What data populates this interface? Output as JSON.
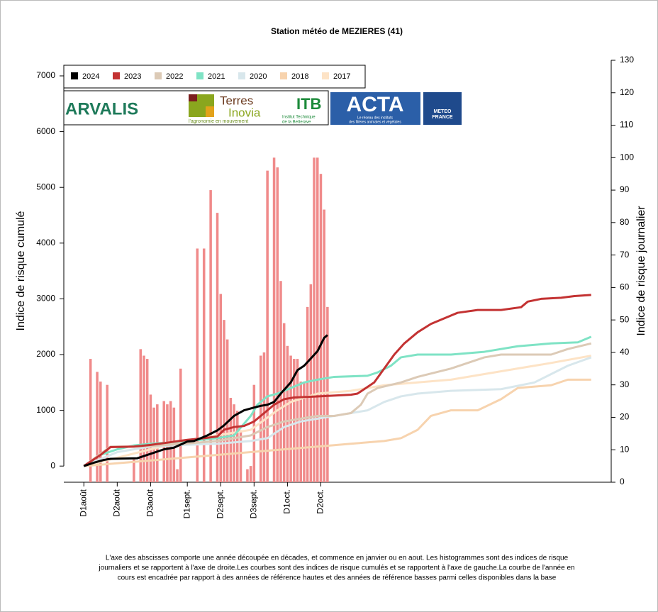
{
  "chart_data": {
    "type": "combo",
    "title": "Station météo de MEZIERES (41)",
    "y_label": "Indice de risque cumulé",
    "y2_label": "Indice de risque journalier",
    "xlim": [
      -6,
      158
    ],
    "xticks": [
      {
        "value": 0,
        "label": "D1août"
      },
      {
        "value": 10,
        "label": "D2août"
      },
      {
        "value": 20,
        "label": "D3août"
      },
      {
        "value": 31,
        "label": "D1sept."
      },
      {
        "value": 41,
        "label": "D2sept."
      },
      {
        "value": 51,
        "label": "D3sept."
      },
      {
        "value": 61,
        "label": "D1oct."
      },
      {
        "value": 71,
        "label": "D2oct."
      }
    ],
    "ylim": [
      -290,
      7280
    ],
    "yticks": [
      0,
      1000,
      2000,
      3000,
      4000,
      5000,
      6000,
      7000
    ],
    "y2lim": [
      0,
      130
    ],
    "y2ticks": [
      0,
      10,
      20,
      30,
      40,
      50,
      60,
      70,
      80,
      90,
      100,
      110,
      120,
      130
    ],
    "legend_position": "top-left",
    "bars": {
      "color": "#f08a8a",
      "axis": "y2",
      "x": [
        2,
        4,
        5,
        7,
        15,
        17,
        18,
        19,
        20,
        21,
        22,
        24,
        25,
        26,
        27,
        28,
        29,
        34,
        36,
        38,
        40,
        41,
        42,
        43,
        44,
        45,
        46,
        47,
        49,
        50,
        51,
        53,
        54,
        55,
        57,
        58,
        59,
        60,
        61,
        62,
        63,
        64,
        65,
        66,
        67,
        68,
        69,
        70,
        71,
        72,
        73
      ],
      "values": [
        38,
        34,
        31,
        30,
        7,
        41,
        39,
        38,
        27,
        23,
        24,
        25,
        24,
        25,
        23,
        4,
        35,
        72,
        72,
        90,
        83,
        58,
        50,
        44,
        26,
        24,
        22,
        16,
        4,
        5,
        30,
        39,
        40,
        96,
        100,
        97,
        62,
        49,
        42,
        39,
        38,
        38,
        31,
        31,
        54,
        61,
        100,
        100,
        95,
        84,
        54
      ]
    },
    "series": [
      {
        "name": "2017",
        "color": "#fde3c6",
        "x": [
          0,
          10,
          20,
          30,
          40,
          50,
          58,
          62,
          70,
          80,
          90,
          100,
          110,
          120,
          130,
          140,
          152
        ],
        "values": [
          0,
          150,
          300,
          450,
          550,
          650,
          1000,
          1150,
          1300,
          1350,
          1450,
          1500,
          1550,
          1650,
          1750,
          1850,
          1980
        ]
      },
      {
        "name": "2018",
        "color": "#f7d3ae",
        "x": [
          0,
          10,
          20,
          30,
          40,
          50,
          60,
          70,
          80,
          90,
          95,
          100,
          104,
          110,
          118,
          125,
          130,
          140,
          145,
          152
        ],
        "values": [
          0,
          50,
          100,
          150,
          200,
          250,
          300,
          350,
          400,
          450,
          500,
          650,
          900,
          1000,
          1000,
          1200,
          1400,
          1450,
          1550,
          1550
        ]
      },
      {
        "name": "2020",
        "color": "#d8e7ec",
        "x": [
          0,
          10,
          20,
          30,
          40,
          50,
          55,
          60,
          65,
          70,
          75,
          80,
          85,
          90,
          95,
          100,
          110,
          125,
          135,
          145,
          152
        ],
        "values": [
          0,
          250,
          350,
          380,
          400,
          450,
          500,
          700,
          800,
          850,
          900,
          950,
          1000,
          1150,
          1250,
          1300,
          1350,
          1380,
          1500,
          1800,
          1950
        ]
      },
      {
        "name": "2021",
        "color": "#7fe3c5",
        "x": [
          0,
          5,
          10,
          15,
          20,
          25,
          30,
          35,
          40,
          45,
          50,
          52,
          55,
          58,
          62,
          66,
          70,
          75,
          85,
          88,
          92,
          95,
          100,
          110,
          120,
          130,
          140,
          148,
          152
        ],
        "values": [
          0,
          200,
          300,
          370,
          400,
          420,
          450,
          470,
          500,
          550,
          900,
          1100,
          1250,
          1300,
          1400,
          1500,
          1550,
          1600,
          1620,
          1680,
          1800,
          1950,
          2000,
          2000,
          2050,
          2150,
          2200,
          2220,
          2320
        ]
      },
      {
        "name": "2022",
        "color": "#dccab6",
        "x": [
          0,
          8,
          15,
          20,
          30,
          40,
          45,
          50,
          55,
          60,
          65,
          70,
          75,
          80,
          83,
          85,
          88,
          95,
          100,
          110,
          115,
          120,
          125,
          140,
          145,
          152
        ],
        "values": [
          0,
          350,
          350,
          360,
          400,
          450,
          500,
          550,
          700,
          800,
          850,
          900,
          900,
          950,
          1100,
          1300,
          1400,
          1500,
          1600,
          1750,
          1850,
          1950,
          2000,
          2000,
          2100,
          2200
        ]
      },
      {
        "name": "2023",
        "color": "#c33232",
        "x": [
          0,
          5,
          8,
          15,
          20,
          25,
          31,
          36,
          40,
          42,
          45,
          48,
          51,
          53,
          55,
          57,
          60,
          63,
          70,
          80,
          82,
          87,
          90,
          93,
          96,
          100,
          104,
          108,
          112,
          118,
          125,
          131,
          133,
          137,
          143,
          147,
          152
        ],
        "values": [
          0,
          200,
          340,
          350,
          380,
          420,
          470,
          500,
          530,
          650,
          700,
          720,
          800,
          900,
          1000,
          1100,
          1200,
          1230,
          1250,
          1280,
          1300,
          1500,
          1750,
          2000,
          2200,
          2400,
          2550,
          2650,
          2750,
          2800,
          2800,
          2850,
          2950,
          3000,
          3020,
          3050,
          3070
        ]
      },
      {
        "name": "2024",
        "color": "#000000",
        "x": [
          0,
          3,
          6,
          8,
          16,
          20,
          24,
          27,
          31,
          33,
          37,
          40,
          42,
          45,
          48,
          51,
          53,
          55,
          57,
          59,
          62,
          64,
          66,
          68,
          70,
          72,
          73
        ],
        "values": [
          0,
          60,
          110,
          130,
          140,
          220,
          300,
          330,
          440,
          450,
          550,
          640,
          730,
          900,
          1000,
          1050,
          1080,
          1100,
          1150,
          1300,
          1500,
          1720,
          1800,
          1930,
          2060,
          2300,
          2350
        ]
      }
    ],
    "legend_order": [
      6,
      5,
      4,
      3,
      2,
      1,
      0
    ]
  },
  "logos": [
    "ARVALIS",
    "Terres",
    "Inovia",
    "l'agronomie en mouvement",
    "ITB",
    "Institut Technique",
    "de la Betterave",
    "ACTA",
    "Le réseau des instituts",
    "des filières animales et végétales",
    "METEO",
    "FRANCE"
  ],
  "caption": [
    "L'axe des abscisses comporte une année découpée en décades, et commence en janvier  ou en aout. Les histogrammes sont des indices de risque",
    "journaliers et se rapportent à l'axe de droite.Les courbes sont des indices de risque cumulés et se rapportent à l'axe de gauche.La courbe de l'année en",
    "cours est encadrée par rapport à des années de référence hautes et des années de référence basses parmi celles disponibles dans la base"
  ]
}
